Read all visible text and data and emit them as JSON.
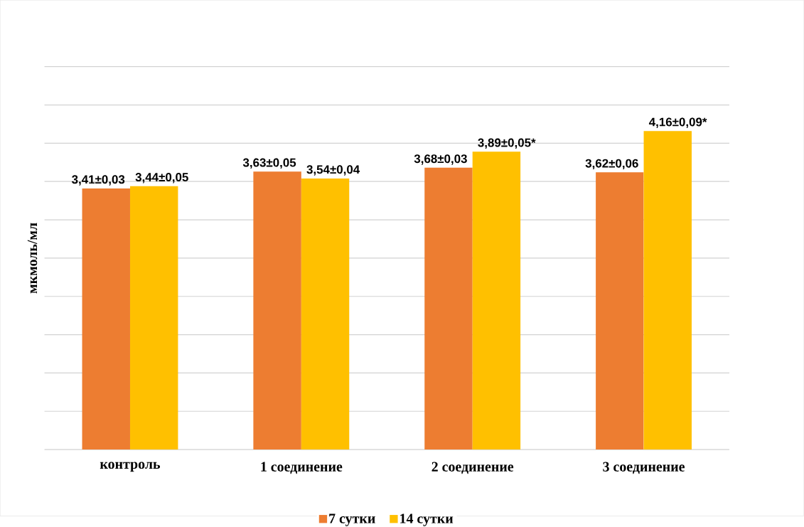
{
  "chart_data": {
    "type": "bar",
    "ylabel": "мкмоль/мл",
    "categories": [
      "контроль",
      "1 соединение",
      "2 соединение",
      "3 соединение"
    ],
    "series": [
      {
        "name": "7 сутки",
        "color": "#ed7d31",
        "values": [
          3.41,
          3.63,
          3.68,
          3.62
        ],
        "value_labels": [
          "3,41±0,03",
          "3,63±0,05",
          "3,68±0,03",
          "3,62±0,06"
        ]
      },
      {
        "name": "14 сутки",
        "color": "#ffc000",
        "values": [
          3.44,
          3.54,
          3.89,
          4.16
        ],
        "value_labels": [
          "3,44±0,05",
          "3,54±0,04",
          "3,89±0,05*",
          "4,16±0,09*"
        ]
      }
    ],
    "ylim": [
      0,
      5
    ],
    "yticks": [
      {
        "value": 0,
        "label": null
      },
      {
        "value": 0.5,
        "label": null
      },
      {
        "value": 1,
        "label": null
      },
      {
        "value": 1.5,
        "label": null
      },
      {
        "value": 2,
        "label": null
      },
      {
        "value": 2.5,
        "label": null
      },
      {
        "value": 3,
        "label": null
      },
      {
        "value": 3.5,
        "label": null
      },
      {
        "value": 4,
        "label": null
      },
      {
        "value": 4.5,
        "label": null
      },
      {
        "value": 5,
        "label": null
      }
    ],
    "grid": "y",
    "legend": "bottom",
    "tick_labels": "x"
  }
}
